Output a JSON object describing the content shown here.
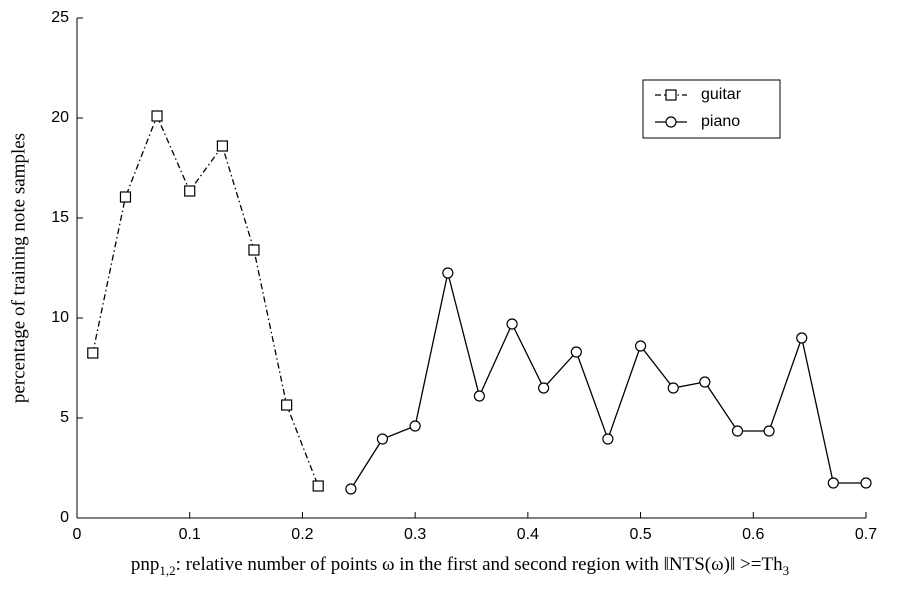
{
  "chart_data": {
    "type": "line",
    "y_label": "percentage of training note samples",
    "x_label": [
      "pnp",
      "1,2",
      ": relative number of points ω in the first and second region with ‖NTS(ω)‖ >=Th",
      "3"
    ],
    "series": [
      {
        "name": "guitar",
        "color": "#000000",
        "linestyle": "dash-dot",
        "marker": "square",
        "x": [
          0.014,
          0.043,
          0.071,
          0.1,
          0.129,
          0.157,
          0.186,
          0.214
        ],
        "values": [
          8.25,
          16.05,
          20.1,
          16.35,
          18.6,
          13.4,
          5.65,
          1.6
        ]
      },
      {
        "name": "piano",
        "color": "#000000",
        "linestyle": "solid",
        "marker": "circle",
        "x": [
          0.243,
          0.271,
          0.3,
          0.329,
          0.357,
          0.386,
          0.414,
          0.443,
          0.471,
          0.5,
          0.529,
          0.557,
          0.586,
          0.614,
          0.643,
          0.671,
          0.7
        ],
        "values": [
          1.45,
          3.95,
          4.6,
          12.25,
          6.1,
          9.7,
          6.5,
          8.3,
          3.95,
          8.6,
          6.5,
          6.8,
          4.35,
          4.35,
          9.0,
          1.75,
          1.75
        ]
      }
    ],
    "xlim": [
      0,
      0.7
    ],
    "xticks": [
      0,
      0.1,
      0.2,
      0.3,
      0.4,
      0.5,
      0.6,
      0.7
    ],
    "ylim": [
      0,
      25
    ],
    "yticks": [
      0,
      5,
      10,
      15,
      20,
      25
    ],
    "legend": "upper right"
  }
}
